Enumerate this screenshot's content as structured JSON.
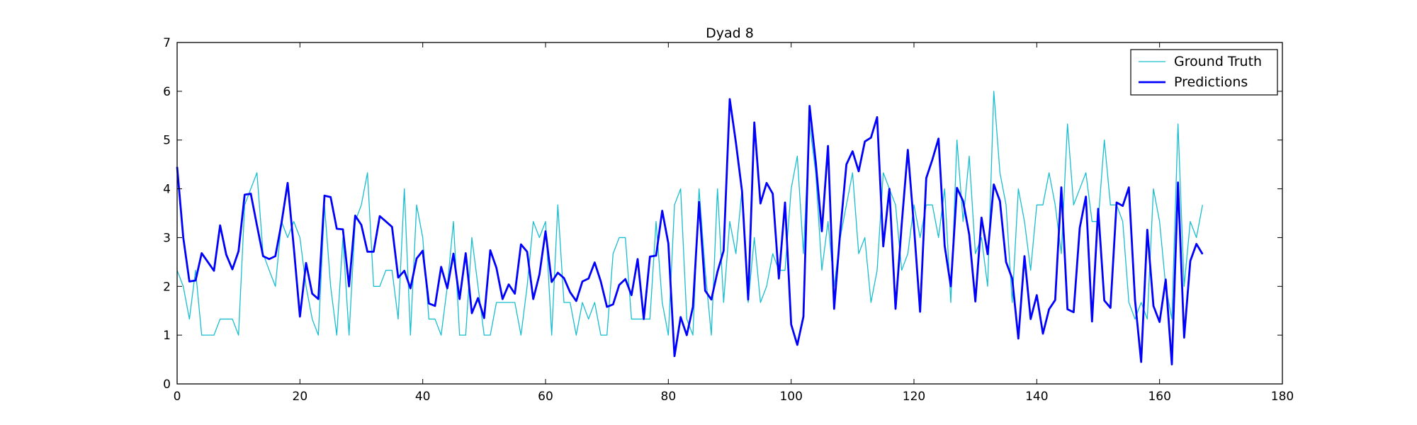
{
  "chart_data": {
    "type": "line",
    "title": "Dyad 8",
    "xlabel": "",
    "ylabel": "",
    "xlim": [
      0,
      180
    ],
    "ylim": [
      0,
      7
    ],
    "x_ticks": [
      0,
      20,
      40,
      60,
      80,
      100,
      120,
      140,
      160,
      180
    ],
    "y_ticks": [
      0,
      1,
      2,
      3,
      4,
      5,
      6,
      7
    ],
    "grid": false,
    "legend_position": "top-right",
    "series": [
      {
        "name": "Ground Truth",
        "color": "#17becf",
        "style": "thin",
        "values": [
          2.33,
          2.0,
          1.33,
          2.33,
          1.0,
          1.0,
          1.0,
          1.33,
          1.33,
          1.33,
          1.0,
          3.67,
          4.0,
          4.33,
          2.67,
          2.33,
          2.0,
          3.33,
          3.0,
          3.33,
          3.0,
          2.0,
          1.33,
          1.0,
          3.67,
          2.0,
          1.0,
          3.0,
          1.0,
          3.33,
          3.67,
          4.33,
          2.0,
          2.0,
          2.33,
          2.33,
          1.33,
          4.0,
          1.0,
          3.67,
          3.0,
          1.33,
          1.33,
          1.0,
          2.0,
          3.33,
          1.0,
          1.0,
          3.0,
          2.0,
          1.0,
          1.0,
          1.67,
          1.67,
          1.67,
          1.67,
          1.0,
          2.0,
          3.33,
          3.0,
          3.33,
          1.0,
          3.67,
          1.67,
          1.67,
          1.0,
          1.67,
          1.33,
          1.67,
          1.0,
          1.0,
          2.67,
          3.0,
          3.0,
          1.33,
          1.33,
          1.33,
          1.33,
          3.33,
          1.67,
          1.0,
          3.67,
          4.0,
          1.33,
          1.0,
          4.0,
          2.33,
          1.0,
          4.0,
          1.67,
          3.33,
          2.67,
          4.0,
          1.67,
          3.0,
          1.67,
          2.0,
          2.67,
          2.33,
          2.33,
          4.0,
          4.67,
          2.67,
          5.33,
          4.33,
          2.33,
          3.33,
          2.0,
          3.0,
          3.67,
          4.33,
          2.67,
          3.0,
          1.67,
          2.33,
          4.33,
          4.0,
          3.67,
          2.33,
          2.67,
          3.67,
          3.0,
          3.67,
          3.67,
          3.0,
          4.0,
          1.67,
          5.0,
          3.33,
          4.67,
          2.67,
          3.0,
          2.0,
          6.0,
          4.33,
          3.67,
          1.67,
          4.0,
          3.33,
          2.33,
          3.67,
          3.67,
          4.33,
          3.67,
          2.67,
          5.33,
          3.67,
          4.0,
          4.33,
          3.33,
          3.33,
          5.0,
          3.67,
          3.67,
          3.33,
          1.67,
          1.33,
          1.67,
          1.33,
          4.0,
          3.33,
          2.0,
          1.33,
          5.33,
          2.0,
          3.33,
          3.0,
          3.67
        ]
      },
      {
        "name": "Predictions",
        "color": "#0000ff",
        "style": "thick",
        "values": [
          4.45,
          3.0,
          2.1,
          2.12,
          2.68,
          2.5,
          2.32,
          3.25,
          2.65,
          2.35,
          2.72,
          3.88,
          3.9,
          3.25,
          2.62,
          2.56,
          2.62,
          3.3,
          4.12,
          2.8,
          1.38,
          2.48,
          1.85,
          1.74,
          3.86,
          3.83,
          3.18,
          3.17,
          2.0,
          3.45,
          3.26,
          2.71,
          2.71,
          3.44,
          3.33,
          3.22,
          2.18,
          2.32,
          1.96,
          2.57,
          2.73,
          1.65,
          1.6,
          2.4,
          1.96,
          2.67,
          1.74,
          2.68,
          1.45,
          1.76,
          1.35,
          2.74,
          2.38,
          1.74,
          2.04,
          1.85,
          2.86,
          2.71,
          1.74,
          2.24,
          3.13,
          2.09,
          2.28,
          2.17,
          1.88,
          1.7,
          2.1,
          2.16,
          2.49,
          2.1,
          1.58,
          1.63,
          2.03,
          2.15,
          1.82,
          2.56,
          1.33,
          2.61,
          2.63,
          3.55,
          2.88,
          0.57,
          1.37,
          1.0,
          1.58,
          3.73,
          1.91,
          1.73,
          2.3,
          2.73,
          5.84,
          4.95,
          3.95,
          1.73,
          5.36,
          3.7,
          4.12,
          3.9,
          2.16,
          3.72,
          1.22,
          0.8,
          1.38,
          5.7,
          4.55,
          3.13,
          4.88,
          1.54,
          3.14,
          4.5,
          4.77,
          4.36,
          4.97,
          5.05,
          5.47,
          2.82,
          4.0,
          1.54,
          3.27,
          4.8,
          3.23,
          1.48,
          4.22,
          4.6,
          5.03,
          2.83,
          2.0,
          4.02,
          3.75,
          3.06,
          1.69,
          3.41,
          2.66,
          4.09,
          3.75,
          2.5,
          2.16,
          0.93,
          2.62,
          1.33,
          1.82,
          1.03,
          1.53,
          1.72,
          4.03,
          1.53,
          1.47,
          3.2,
          3.84,
          1.28,
          3.59,
          1.71,
          1.56,
          3.72,
          3.65,
          4.03,
          1.72,
          0.45,
          3.16,
          1.6,
          1.27,
          2.14,
          0.4,
          4.13,
          0.95,
          2.52,
          2.87,
          2.66
        ]
      }
    ]
  }
}
